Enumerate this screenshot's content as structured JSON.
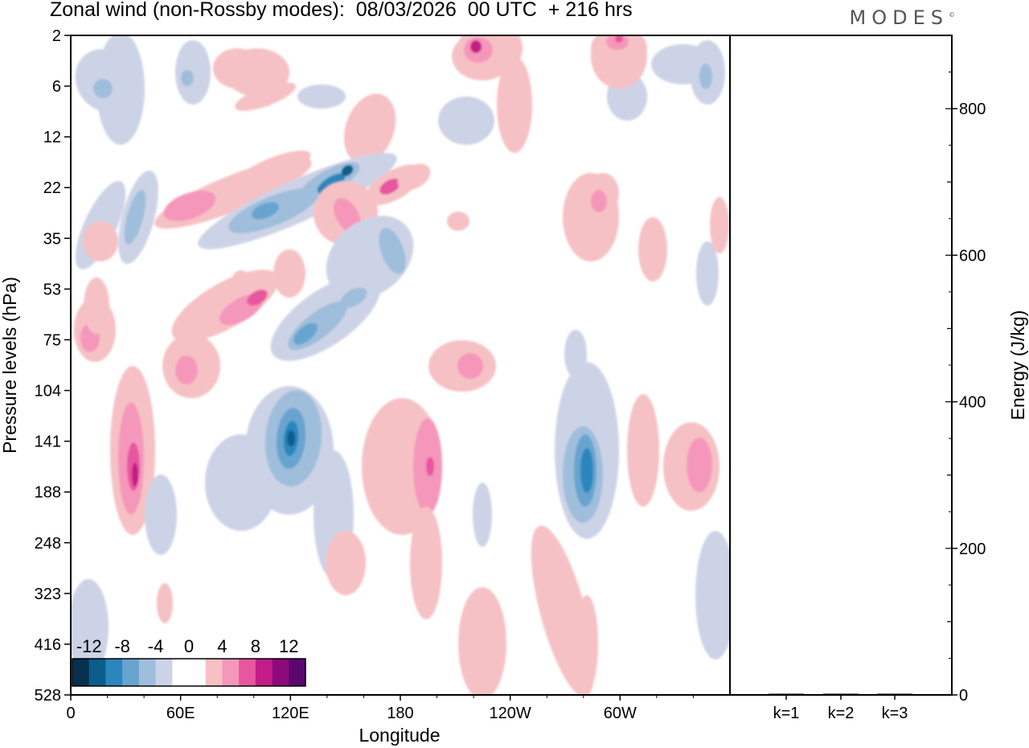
{
  "header": {
    "title": "Zonal wind (non-Rossby modes):  08/03/2026  00 UTC  + 216 hrs",
    "brand": "MODES"
  },
  "chart_data": [
    {
      "type": "heatmap",
      "title": "Zonal wind (non-Rossby modes):  08/03/2026  00 UTC  + 216 hrs",
      "xlabel": "Longitude",
      "ylabel": "Pressure levels (hPa)",
      "x_ticks": [
        "0",
        "60E",
        "120E",
        "180",
        "120W",
        "60W"
      ],
      "x_tick_degrees": [
        0,
        60,
        120,
        180,
        240,
        300
      ],
      "xlim": [
        0,
        360
      ],
      "y_ticks": [
        "2",
        "6",
        "12",
        "22",
        "35",
        "53",
        "75",
        "104",
        "141",
        "188",
        "248",
        "323",
        "416",
        "528"
      ],
      "colorbar": {
        "labels": [
          "-12",
          "-8",
          "-4",
          "0",
          "4",
          "8",
          "12"
        ],
        "levels": [
          -12,
          -8,
          -4,
          0,
          4,
          8,
          12
        ],
        "colors": [
          "#08304f",
          "#0c5c8c",
          "#2b86bd",
          "#68a4cf",
          "#9fbedc",
          "#cdd3e6",
          "#ffffff",
          "#ffffff",
          "#f6c1c4",
          "#f597ba",
          "#e8569f",
          "#c31c86",
          "#8c0a7a",
          "#5a0770"
        ]
      },
      "features": [
        {
          "name": "pos-strip-upper-left",
          "sign": "positive",
          "peak": 7,
          "lon": 65,
          "level": "22-35"
        },
        {
          "name": "neg-band-upper",
          "sign": "negative",
          "peak": -10,
          "lon": 130,
          "level": "12-35"
        },
        {
          "name": "pos-band-upper",
          "sign": "positive",
          "peak": 9,
          "lon": 150,
          "level": "22-35"
        },
        {
          "name": "neg-band-middle",
          "sign": "negative",
          "peak": -6,
          "lon": 110,
          "level": "53-104"
        },
        {
          "name": "pos-band-middle",
          "sign": "positive",
          "peak": 6,
          "lon": 80,
          "level": "53-75"
        },
        {
          "name": "pos-core-lower-left",
          "sign": "positive",
          "peak": 9,
          "lon": 28,
          "level": "141-188"
        },
        {
          "name": "neg-core-120E",
          "sign": "negative",
          "peak": -10,
          "lon": 117,
          "level": "104-188"
        },
        {
          "name": "pos-core-180",
          "sign": "positive",
          "peak": 6,
          "lon": 188,
          "level": "141-188"
        },
        {
          "name": "pos-spot-top-160W",
          "sign": "positive",
          "peak": 8,
          "lon": 218,
          "level": "2-6"
        },
        {
          "name": "pos-spot-top-60W",
          "sign": "positive",
          "peak": 7,
          "lon": 298,
          "level": "2-6"
        },
        {
          "name": "pos-blob-100",
          "sign": "positive",
          "peak": 5,
          "lon": 213,
          "level": "75-104"
        },
        {
          "name": "neg-core-80W",
          "sign": "negative",
          "peak": -10,
          "lon": 281,
          "level": "141-188"
        },
        {
          "name": "pos-core-20W",
          "sign": "positive",
          "peak": 5,
          "lon": 345,
          "level": "141-188"
        }
      ]
    },
    {
      "type": "bar",
      "categories": [
        "k=1",
        "k=2",
        "k=3"
      ],
      "values": [
        1,
        1,
        1
      ],
      "ylabel": "Energy (J/kg)",
      "ylim": [
        0,
        900
      ],
      "y_ticks": [
        0,
        200,
        400,
        600,
        800
      ]
    }
  ]
}
